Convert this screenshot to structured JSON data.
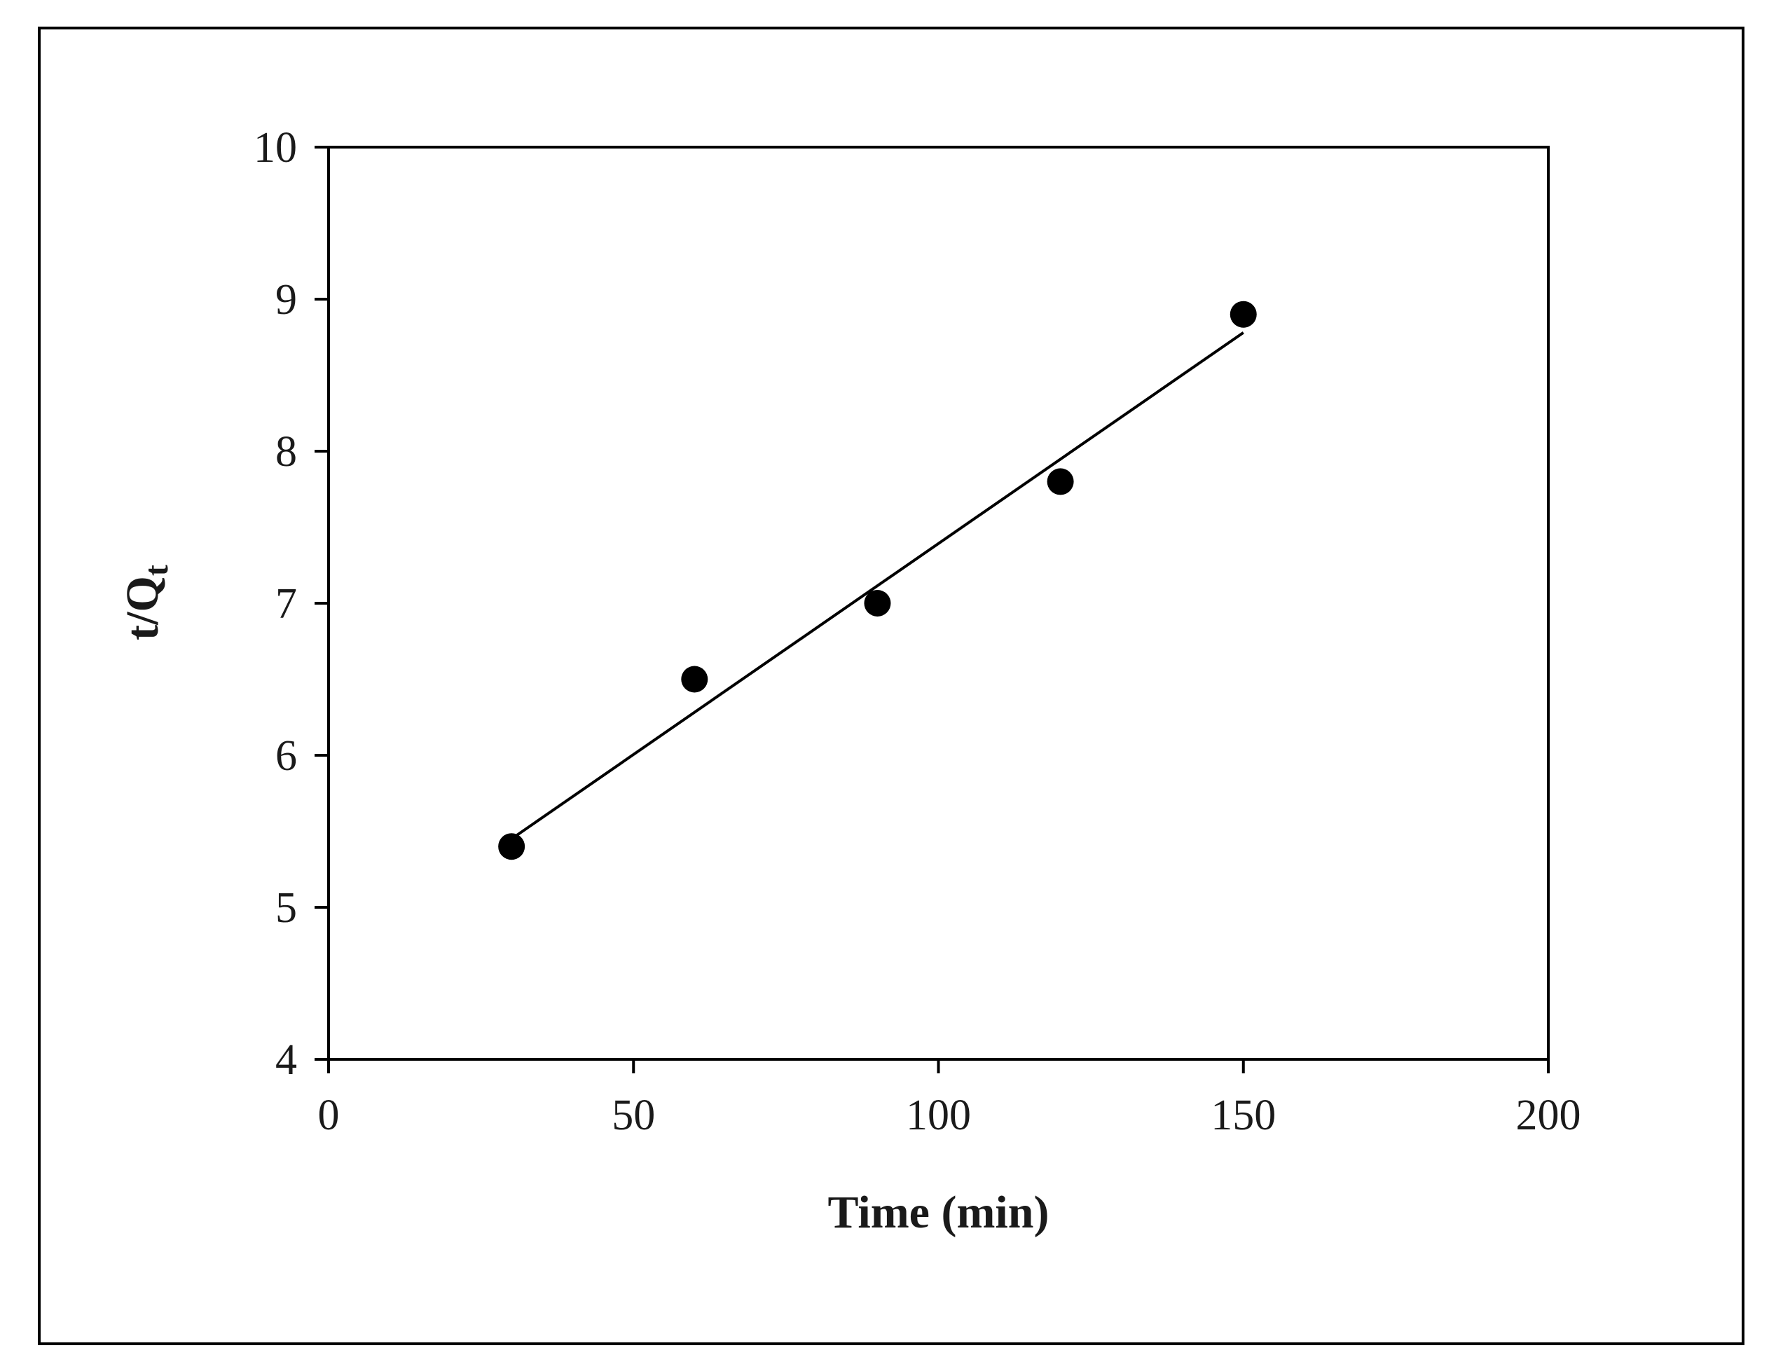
{
  "chart_data": {
    "type": "scatter",
    "xlabel": "Time (min)",
    "ylabel": "t/Q",
    "ylabel_subscript": "t",
    "xlim": [
      0,
      200
    ],
    "ylim": [
      4,
      10
    ],
    "x_ticks": [
      0,
      50,
      100,
      150,
      200
    ],
    "y_ticks": [
      4,
      5,
      6,
      7,
      8,
      9,
      10
    ],
    "grid": false,
    "legend": "none",
    "series": [
      {
        "x": [
          30,
          60,
          90,
          120,
          150
        ],
        "y": [
          5.4,
          6.5,
          7.0,
          7.8,
          8.9
        ],
        "marker_color": "#000000"
      }
    ],
    "trendline": {
      "x_start": 30,
      "x_end": 150,
      "y_start": 5.45,
      "y_end": 8.78,
      "color": "#000000"
    }
  }
}
